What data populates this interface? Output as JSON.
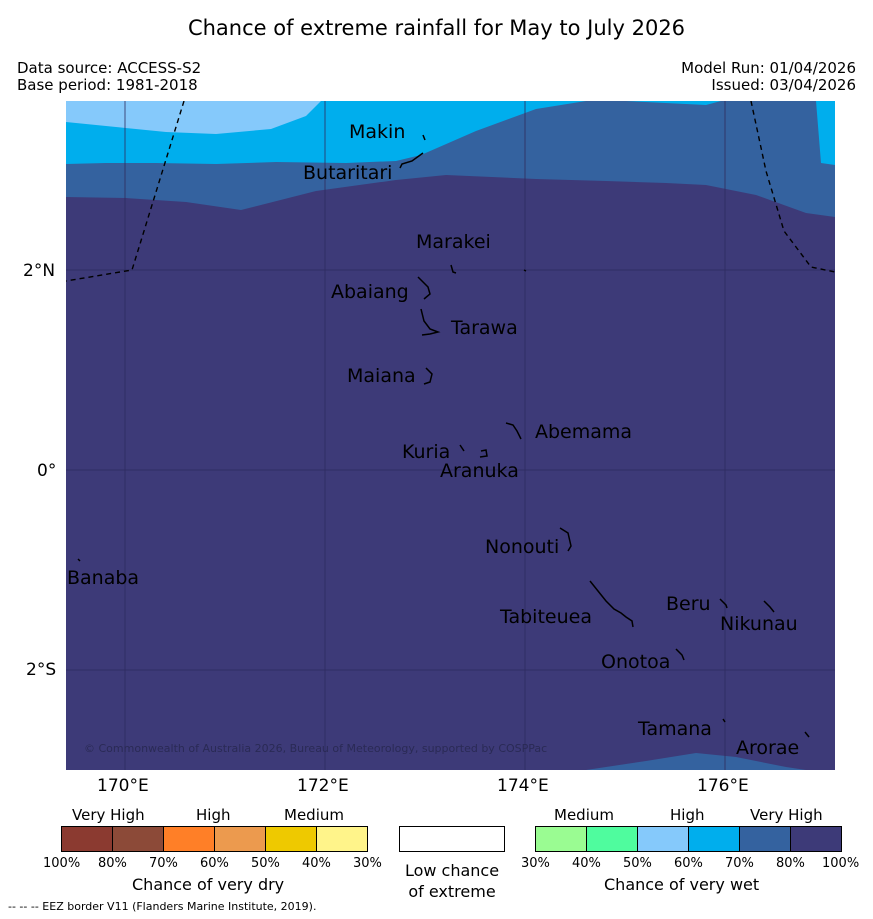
{
  "title": "Chance of extreme rainfall for May to July 2026",
  "meta": {
    "data_source": "Data source: ACCESS-S2",
    "base_period": "Base period: 1981-2018",
    "model_run": "Model Run: 01/04/2026",
    "issued": "Issued: 03/04/2026"
  },
  "map": {
    "lat_labels": [
      "2°N",
      "0°",
      "2°S"
    ],
    "lon_labels": [
      "170°E",
      "172°E",
      "174°E",
      "176°E"
    ],
    "places": [
      "Makin",
      "Butaritari",
      "Marakei",
      "Abaiang",
      "Tarawa",
      "Maiana",
      "Abemama",
      "Kuria",
      "Aranuka",
      "Nonouti",
      "Banaba",
      "Tabiteuea",
      "Beru",
      "Nikunau",
      "Onotoa",
      "Tamana",
      "Arorae"
    ],
    "copyright": "© Commonwealth of Australia 2026, Bureau of Meteorology, supported by COSPPac",
    "zone_colors": {
      "wet_50_60": "#85c9fb",
      "wet_60_70": "#00aeed",
      "wet_70_80": "#34629f",
      "wet_80_100": "#3d3a78"
    }
  },
  "legend": {
    "dry": {
      "categories": [
        "Very High",
        "High",
        "Medium"
      ],
      "ticks": [
        "100%",
        "80%",
        "70%",
        "60%",
        "50%",
        "40%",
        "30%"
      ],
      "title": "Chance of very dry",
      "colors": [
        "#8b3a30",
        "#8c4a38",
        "#ff7f27",
        "#ec9a4e",
        "#eec900",
        "#fff48a"
      ]
    },
    "neutral": {
      "line1": "Low chance",
      "line2": "of extreme",
      "color": "#ffffff"
    },
    "wet": {
      "categories": [
        "Medium",
        "High",
        "Very High"
      ],
      "ticks": [
        "30%",
        "40%",
        "50%",
        "60%",
        "70%",
        "80%",
        "100%"
      ],
      "title": "Chance of very wet",
      "colors": [
        "#9afc92",
        "#4ffc9e",
        "#85c9fb",
        "#00aeed",
        "#34629f",
        "#3d3a78"
      ]
    }
  },
  "footnote": "--  --  -- EEZ border V11 (Flanders Marine Institute, 2019)."
}
